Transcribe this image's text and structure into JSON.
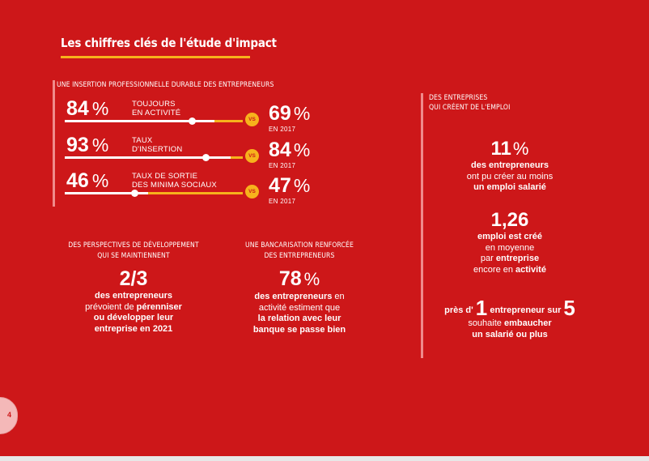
{
  "title": "Les chiffres clés de l'étude d'impact",
  "insertion": {
    "heading": "UNE INSERTION PROFESSIONNELLE DURABLE DES ENTREPRENEURS",
    "vs_label": "VS",
    "rows": [
      {
        "value": "84",
        "unit": "%",
        "label_line1": "TOUJOURS",
        "label_line2": "EN ACTIVITÉ",
        "compare_value": "69",
        "compare_unit": "%",
        "compare_year": "EN 2017",
        "level": 0.84,
        "compare_level": 0.69
      },
      {
        "value": "93",
        "unit": "%",
        "label_line1": "TAUX",
        "label_line2": "D'INSERTION",
        "compare_value": "84",
        "compare_unit": "%",
        "compare_year": "EN 2017",
        "level": 0.93,
        "compare_level": 0.84
      },
      {
        "value": "46",
        "unit": "%",
        "label_line1": "TAUX DE SORTIE",
        "label_line2": "DES MINIMA SOCIAUX",
        "compare_value": "47",
        "compare_unit": "%",
        "compare_year": "EN 2017",
        "level": 0.46,
        "compare_level": 0.47
      }
    ]
  },
  "development": {
    "heading_line1": "DES PERSPECTIVES DE DÉVELOPPEMENT",
    "heading_line2": "QUI SE MAINTIENNENT",
    "value": "2/3",
    "line1": "des entrepreneurs",
    "line2_pre": "prévoient de ",
    "line2_bold": "pérenniser",
    "line3": "ou développer leur",
    "line4": "entreprise en 2021"
  },
  "banking": {
    "heading_line1": "UNE BANCARISATION RENFORCÉE",
    "heading_line2": "DES ENTREPRENEURS",
    "value": "78",
    "unit": "%",
    "line1_bold": "des entrepreneurs",
    "line1_rest": " en",
    "line2": "activité estiment que",
    "line3": "la relation avec leur",
    "line4": "banque se passe bien"
  },
  "jobs": {
    "heading_line1": "DES ENTREPRISES",
    "heading_line2": "QUI CRÉENT DE L'EMPLOI",
    "stat1": {
      "value": "11",
      "unit": "%",
      "line1": "des entrepreneurs",
      "line2": "ont pu créer au moins",
      "line3": "un emploi salarié"
    },
    "stat2": {
      "value": "1,26",
      "line1": "emploi est créé",
      "line2": "en moyenne",
      "line3_pre": "par ",
      "line3_bold": "entreprise",
      "line4_pre": "encore en ",
      "line4_bold": "activité"
    },
    "stat3": {
      "pre": "près d'",
      "value1": "1",
      "mid": "entrepreneur sur",
      "value2": "5",
      "line2_pre": "souhaite ",
      "line2_bold": "embaucher",
      "line3": "un salarié ou plus"
    }
  },
  "page_number": "4",
  "colors": {
    "background": "#cd1719",
    "accent": "#f7b21c",
    "bar_light": "#f08b8b"
  }
}
